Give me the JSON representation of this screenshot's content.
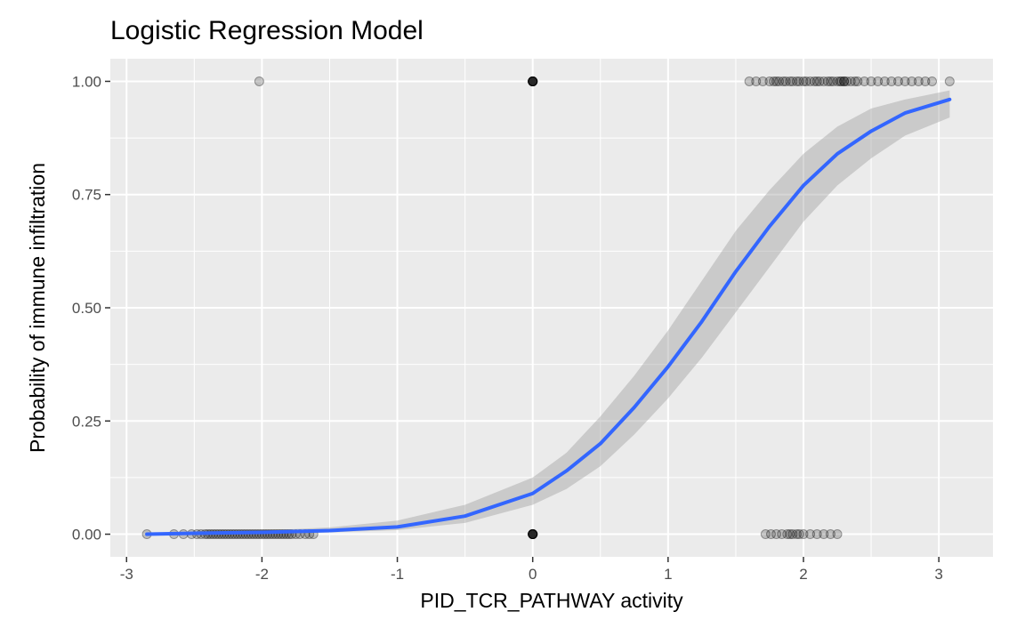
{
  "chart_data": {
    "type": "scatter",
    "title": "Logistic Regression Model",
    "xlabel": "PID_TCR_PATHWAY activity",
    "ylabel": "Probability of immune infiltration",
    "xlim": [
      -3.12,
      3.4
    ],
    "ylim": [
      -0.05,
      1.05
    ],
    "x_ticks": [
      -3,
      -2,
      -1,
      0,
      1,
      2,
      3
    ],
    "x_tick_labels": [
      "-3",
      "-2",
      "-1",
      "0",
      "1",
      "2",
      "3"
    ],
    "y_ticks": [
      0,
      0.25,
      0.5,
      0.75,
      1.0
    ],
    "y_tick_labels": [
      "0.00",
      "0.25",
      "0.50",
      "0.75",
      "1.00"
    ],
    "grid": true,
    "panel_background": "#ebebeb",
    "point_color": "#000000",
    "point_alpha": 0.2,
    "curve_color": "#3366ff",
    "ribbon_color": "#999999",
    "series": [
      {
        "kind": "points",
        "y": 1,
        "x": [
          -2.02,
          0,
          0,
          0,
          0,
          0,
          0,
          0,
          0,
          1.6,
          1.65,
          1.7,
          1.75,
          1.78,
          1.8,
          1.82,
          1.85,
          1.87,
          1.9,
          1.92,
          1.95,
          1.97,
          2.0,
          2.02,
          2.05,
          2.08,
          2.1,
          2.12,
          2.15,
          2.18,
          2.2,
          2.22,
          2.25,
          2.27,
          2.28,
          2.3,
          2.3,
          2.32,
          2.35,
          2.38,
          2.4,
          2.45,
          2.5,
          2.55,
          2.6,
          2.65,
          2.7,
          2.75,
          2.8,
          2.85,
          2.9,
          2.95,
          3.08
        ]
      },
      {
        "kind": "points",
        "y": 0,
        "x": [
          -2.85,
          -2.65,
          -2.58,
          -2.52,
          -2.48,
          -2.45,
          -2.42,
          -2.4,
          -2.38,
          -2.36,
          -2.34,
          -2.32,
          -2.3,
          -2.28,
          -2.26,
          -2.24,
          -2.22,
          -2.2,
          -2.18,
          -2.16,
          -2.14,
          -2.12,
          -2.1,
          -2.08,
          -2.06,
          -2.04,
          -2.02,
          -2.0,
          -1.98,
          -1.96,
          -1.94,
          -1.92,
          -1.9,
          -1.88,
          -1.86,
          -1.84,
          -1.82,
          -1.8,
          -1.78,
          -1.75,
          -1.72,
          -1.68,
          -1.65,
          -1.62,
          0,
          0,
          0,
          0,
          0,
          0,
          0,
          0,
          1.72,
          1.76,
          1.8,
          1.84,
          1.88,
          1.9,
          1.92,
          1.95,
          1.97,
          2.0,
          2.05,
          2.1,
          2.15,
          2.2,
          2.25
        ]
      }
    ],
    "fit": {
      "name": "logistic fit",
      "x": [
        -2.85,
        -2.5,
        -2.0,
        -1.5,
        -1.0,
        -0.5,
        0.0,
        0.25,
        0.5,
        0.75,
        1.0,
        1.25,
        1.5,
        1.75,
        2.0,
        2.25,
        2.5,
        2.75,
        3.08
      ],
      "y": [
        0.0,
        0.002,
        0.004,
        0.008,
        0.016,
        0.04,
        0.09,
        0.14,
        0.2,
        0.28,
        0.37,
        0.47,
        0.58,
        0.68,
        0.77,
        0.84,
        0.89,
        0.93,
        0.96
      ],
      "lower": [
        0.0,
        0.001,
        0.002,
        0.004,
        0.009,
        0.025,
        0.065,
        0.1,
        0.15,
        0.22,
        0.3,
        0.39,
        0.49,
        0.59,
        0.69,
        0.77,
        0.83,
        0.88,
        0.92
      ],
      "upper": [
        0.001,
        0.004,
        0.008,
        0.015,
        0.03,
        0.065,
        0.125,
        0.18,
        0.26,
        0.35,
        0.45,
        0.56,
        0.67,
        0.76,
        0.84,
        0.9,
        0.94,
        0.96,
        0.98
      ]
    }
  }
}
